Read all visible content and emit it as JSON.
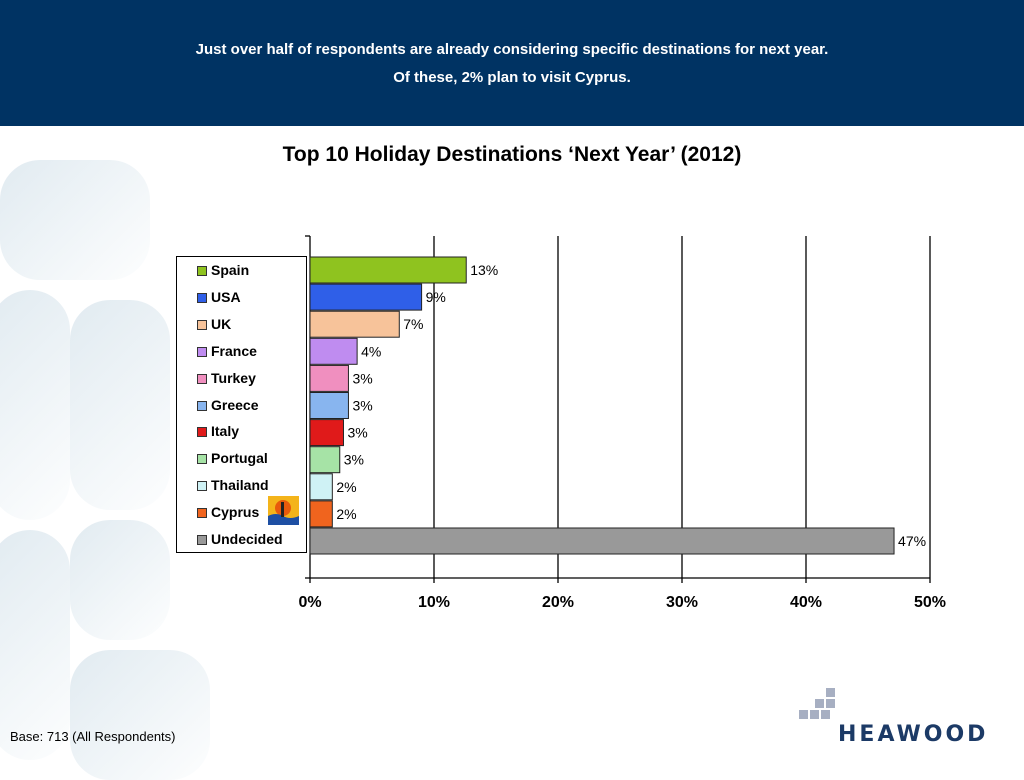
{
  "header": {
    "line1": "Just over half of respondents are already considering specific destinations for next year.",
    "line2": "Of these, 2% plan to visit Cyprus."
  },
  "chart_data": {
    "type": "bar",
    "orientation": "horizontal",
    "title": "Top 10 Holiday Destinations ‘Next Year’ (2012)",
    "categories": [
      "Spain",
      "USA",
      "UK",
      "France",
      "Turkey",
      "Greece",
      "Italy",
      "Portugal",
      "Thailand",
      "Cyprus",
      "Undecided"
    ],
    "values": [
      13,
      9,
      7,
      4,
      3,
      3,
      3,
      3,
      2,
      2,
      47
    ],
    "bar_lengths": [
      12.6,
      9.0,
      7.2,
      3.8,
      3.1,
      3.1,
      2.7,
      2.4,
      1.8,
      1.8,
      47.1
    ],
    "data_labels": [
      "13%",
      "9%",
      "7%",
      "4%",
      "3%",
      "3%",
      "3%",
      "3%",
      "2%",
      "2%",
      "47%"
    ],
    "colors": [
      "#8fc31f",
      "#2f5fe8",
      "#f7c39a",
      "#bf8cf0",
      "#f08fbf",
      "#88b5ef",
      "#e01a1a",
      "#a6e3a6",
      "#cff2f5",
      "#f0641e",
      "#999999"
    ],
    "x_ticks": [
      "0%",
      "10%",
      "20%",
      "30%",
      "40%",
      "50%"
    ],
    "xlim": [
      0,
      50
    ],
    "grid": "vertical",
    "legend_position": "left"
  },
  "footer": {
    "base": "Base: 713 (All Respondents)"
  },
  "logo": {
    "text": "HEAWOOD"
  }
}
